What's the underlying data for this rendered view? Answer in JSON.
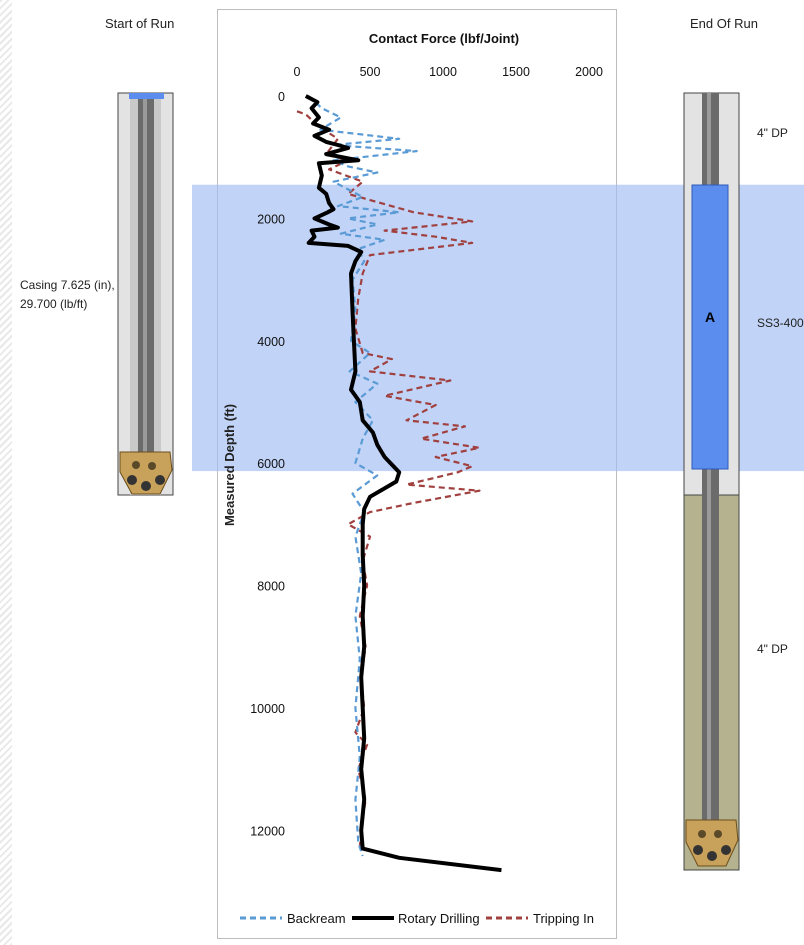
{
  "left_panel": {
    "title": "Start of Run",
    "casing_label_line1": "Casing 7.625 (in),",
    "casing_label_line2": "29.700 (lb/ft)"
  },
  "right_panel": {
    "title": "End Of Run",
    "top_label": "4\" DP",
    "tool_label": "SS3-400",
    "tool_letter": "A",
    "bottom_label": "4\" DP"
  },
  "colors": {
    "backream": "#5b9bd5",
    "rotary": "#000000",
    "tripping": "#a0403f",
    "highlight": "#9fbbf2",
    "tool": "#5b8def",
    "pipe_lower": "#b5b38f"
  },
  "chart_data": {
    "type": "line",
    "title": "Contact Force (lbf/Joint)",
    "xlabel": "Contact Force (lbf/Joint)",
    "ylabel": "Measured Depth (ft)",
    "xlim": [
      0,
      2000
    ],
    "ylim": [
      0,
      12600
    ],
    "x_ticks": [
      0,
      500,
      1000,
      1500,
      2000
    ],
    "y_ticks": [
      0,
      2000,
      4000,
      6000,
      8000,
      10000,
      12000
    ],
    "highlight_depth_range": [
      1450,
      6130
    ],
    "legend_position": "bottom",
    "series": [
      {
        "name": "Backream",
        "style": "dashed",
        "points": [
          [
            80,
            0
          ],
          [
            170,
            200
          ],
          [
            300,
            350
          ],
          [
            160,
            550
          ],
          [
            700,
            700
          ],
          [
            250,
            800
          ],
          [
            820,
            900
          ],
          [
            250,
            1050
          ],
          [
            350,
            1150
          ],
          [
            550,
            1250
          ],
          [
            250,
            1400
          ],
          [
            450,
            1650
          ],
          [
            280,
            1800
          ],
          [
            700,
            1900
          ],
          [
            350,
            2000
          ],
          [
            550,
            2100
          ],
          [
            300,
            2250
          ],
          [
            600,
            2350
          ],
          [
            420,
            2500
          ],
          [
            460,
            2700
          ],
          [
            380,
            3000
          ],
          [
            400,
            3500
          ],
          [
            370,
            4000
          ],
          [
            500,
            4200
          ],
          [
            360,
            4500
          ],
          [
            550,
            4700
          ],
          [
            400,
            5000
          ],
          [
            520,
            5300
          ],
          [
            450,
            5600
          ],
          [
            400,
            6000
          ],
          [
            550,
            6200
          ],
          [
            380,
            6500
          ],
          [
            460,
            6800
          ],
          [
            400,
            7200
          ],
          [
            440,
            7800
          ],
          [
            400,
            8500
          ],
          [
            430,
            9200
          ],
          [
            400,
            10000
          ],
          [
            430,
            10800
          ],
          [
            400,
            11500
          ],
          [
            420,
            12200
          ],
          [
            450,
            12420
          ]
        ]
      },
      {
        "name": "Rotary Drilling",
        "style": "solid",
        "points": [
          [
            60,
            0
          ],
          [
            140,
            100
          ],
          [
            100,
            200
          ],
          [
            150,
            350
          ],
          [
            110,
            450
          ],
          [
            220,
            550
          ],
          [
            120,
            650
          ],
          [
            200,
            750
          ],
          [
            280,
            800
          ],
          [
            350,
            850
          ],
          [
            200,
            950
          ],
          [
            420,
            1050
          ],
          [
            150,
            1100
          ],
          [
            170,
            1300
          ],
          [
            150,
            1500
          ],
          [
            200,
            1600
          ],
          [
            220,
            1750
          ],
          [
            250,
            1850
          ],
          [
            210,
            1900
          ],
          [
            120,
            2000
          ],
          [
            220,
            2100
          ],
          [
            280,
            2150
          ],
          [
            100,
            2200
          ],
          [
            120,
            2300
          ],
          [
            80,
            2400
          ],
          [
            350,
            2450
          ],
          [
            440,
            2550
          ],
          [
            400,
            2700
          ],
          [
            370,
            2900
          ],
          [
            380,
            3500
          ],
          [
            390,
            4000
          ],
          [
            400,
            4500
          ],
          [
            370,
            4800
          ],
          [
            430,
            5000
          ],
          [
            450,
            5300
          ],
          [
            520,
            5500
          ],
          [
            550,
            5700
          ],
          [
            600,
            5900
          ],
          [
            700,
            6150
          ],
          [
            680,
            6300
          ],
          [
            500,
            6550
          ],
          [
            460,
            6750
          ],
          [
            450,
            7000
          ],
          [
            450,
            7500
          ],
          [
            460,
            8000
          ],
          [
            450,
            8500
          ],
          [
            460,
            9000
          ],
          [
            440,
            9500
          ],
          [
            450,
            10000
          ],
          [
            460,
            10500
          ],
          [
            440,
            11000
          ],
          [
            460,
            11500
          ],
          [
            440,
            12000
          ],
          [
            450,
            12300
          ],
          [
            700,
            12450
          ],
          [
            1400,
            12650
          ]
        ]
      },
      {
        "name": "Tripping In",
        "style": "dashed",
        "points": [
          [
            0,
            250
          ],
          [
            60,
            300
          ],
          [
            150,
            500
          ],
          [
            280,
            700
          ],
          [
            200,
            950
          ],
          [
            350,
            1050
          ],
          [
            220,
            1200
          ],
          [
            450,
            1400
          ],
          [
            350,
            1600
          ],
          [
            800,
            1900
          ],
          [
            1200,
            2050
          ],
          [
            600,
            2200
          ],
          [
            950,
            2300
          ],
          [
            1200,
            2400
          ],
          [
            500,
            2600
          ],
          [
            450,
            2900
          ],
          [
            420,
            3300
          ],
          [
            400,
            3800
          ],
          [
            450,
            4200
          ],
          [
            650,
            4300
          ],
          [
            500,
            4500
          ],
          [
            1050,
            4650
          ],
          [
            600,
            4900
          ],
          [
            950,
            5050
          ],
          [
            750,
            5300
          ],
          [
            1150,
            5400
          ],
          [
            850,
            5600
          ],
          [
            1250,
            5750
          ],
          [
            950,
            5900
          ],
          [
            1200,
            6050
          ],
          [
            1100,
            6150
          ],
          [
            750,
            6350
          ],
          [
            1250,
            6450
          ],
          [
            800,
            6650
          ],
          [
            500,
            6800
          ],
          [
            350,
            7000
          ],
          [
            500,
            7200
          ],
          [
            450,
            7600
          ],
          [
            480,
            8000
          ],
          [
            430,
            8500
          ],
          [
            470,
            9000
          ],
          [
            440,
            9500
          ],
          [
            460,
            10000
          ],
          [
            400,
            10400
          ],
          [
            480,
            10600
          ],
          [
            420,
            11000
          ],
          [
            470,
            11500
          ],
          [
            440,
            12000
          ],
          [
            430,
            12300
          ],
          [
            720,
            12450
          ],
          [
            1400,
            12660
          ]
        ]
      }
    ]
  }
}
